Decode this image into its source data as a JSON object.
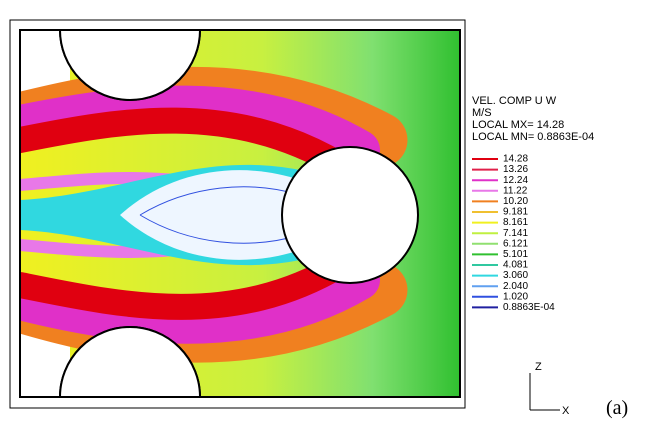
{
  "legend": {
    "title": "VEL. COMP U W",
    "unit": "M/S",
    "max_label": "LOCAL MX= 14.28",
    "min_label": "LOCAL MN= 0.8863E-04",
    "items": [
      {
        "label": "14.28",
        "color": "#e00010"
      },
      {
        "label": "13.26",
        "color": "#e0204a"
      },
      {
        "label": "12.24",
        "color": "#e030c8"
      },
      {
        "label": "11.22",
        "color": "#e878e8"
      },
      {
        "label": "10.20",
        "color": "#f08020"
      },
      {
        "label": "9.181",
        "color": "#f0c030"
      },
      {
        "label": "8.161",
        "color": "#f0f020"
      },
      {
        "label": "7.141",
        "color": "#c0f040"
      },
      {
        "label": "6.121",
        "color": "#90e070"
      },
      {
        "label": "5.101",
        "color": "#30c030"
      },
      {
        "label": "4.081",
        "color": "#30c8a0"
      },
      {
        "label": "3.060",
        "color": "#30d8e0"
      },
      {
        "label": "2.040",
        "color": "#60a0f0"
      },
      {
        "label": "1.020",
        "color": "#3050e0"
      },
      {
        "label": "0.8863E-04",
        "color": "#2020a0"
      }
    ]
  },
  "axis": {
    "z": "Z",
    "x": "X"
  },
  "panel_label": "(a)"
}
